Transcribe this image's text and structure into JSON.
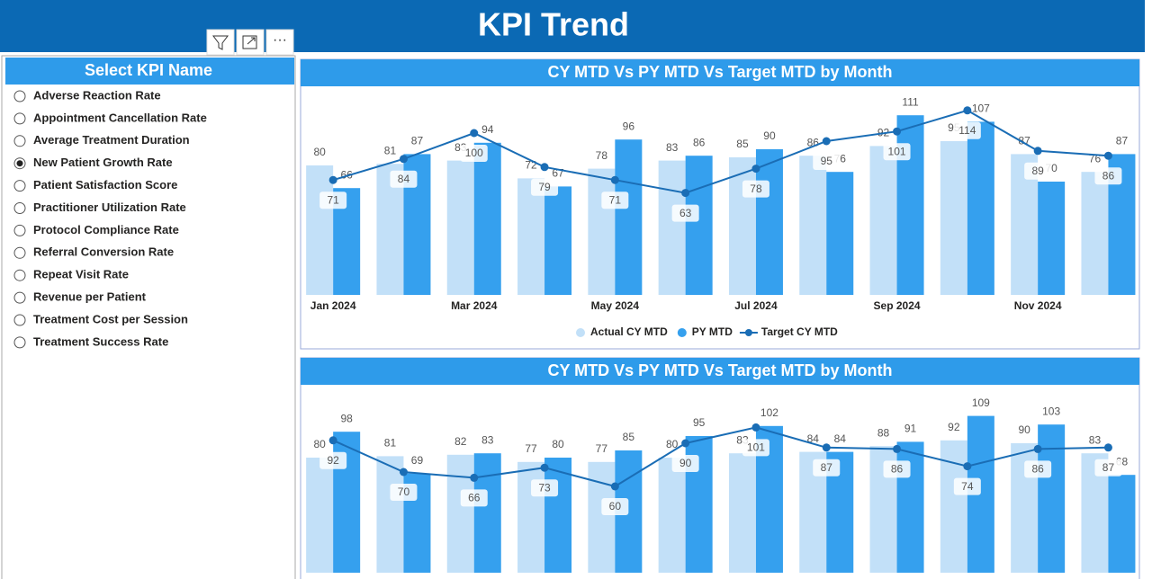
{
  "header": {
    "title": "KPI Trend"
  },
  "slicer": {
    "title": "Select KPI Name",
    "selected": 3,
    "options": [
      "Adverse Reaction Rate",
      "Appointment Cancellation Rate",
      "Average Treatment Duration",
      "New Patient Growth Rate",
      "Patient Satisfaction Score",
      "Practitioner Utilization Rate",
      "Protocol Compliance Rate",
      "Referral Conversion Rate",
      "Repeat Visit Rate",
      "Revenue per Patient",
      "Treatment Cost per Session",
      "Treatment Success Rate"
    ]
  },
  "chart_data": [
    {
      "type": "bar-line",
      "title": "CY MTD Vs PY MTD Vs Target MTD by Month",
      "categories": [
        "Jan 2024",
        null,
        "Mar 2024",
        null,
        "May 2024",
        null,
        "Jul 2024",
        null,
        "Sep 2024",
        null,
        "Nov 2024",
        null
      ],
      "series": [
        {
          "name": "Actual CY MTD",
          "color": "#c2e0f8",
          "values": [
            80,
            81,
            83,
            72,
            78,
            83,
            85,
            86,
            92,
            95,
            87,
            76
          ]
        },
        {
          "name": "PY MTD",
          "color": "#35a0ee",
          "values": [
            66,
            87,
            94,
            67,
            96,
            86,
            90,
            76,
            111,
            107,
            70,
            87
          ]
        },
        {
          "name": "Target CY MTD",
          "color": "#1a6db5",
          "values": [
            71,
            84,
            100,
            79,
            71,
            63,
            78,
            95,
            101,
            114,
            89,
            86
          ]
        }
      ],
      "ylim": [
        0,
        120
      ],
      "legend": "bottom"
    },
    {
      "type": "bar-line",
      "title": "CY MTD Vs PY MTD Vs Target MTD by Month",
      "categories": [
        null,
        null,
        null,
        null,
        null,
        null,
        null,
        null,
        null,
        null,
        null,
        null
      ],
      "series": [
        {
          "color": "#c2e0f8",
          "values": [
            80,
            81,
            82,
            77,
            77,
            80,
            83,
            84,
            88,
            92,
            90,
            83
          ]
        },
        {
          "color": "#35a0ee",
          "values": [
            98,
            69,
            83,
            80,
            85,
            95,
            102,
            84,
            91,
            109,
            103,
            68
          ]
        },
        {
          "color": "#1a6db5",
          "values": [
            92,
            70,
            66,
            73,
            60,
            90,
            101,
            87,
            86,
            74,
            86,
            87
          ]
        }
      ],
      "ylim": [
        0,
        120
      ]
    }
  ]
}
